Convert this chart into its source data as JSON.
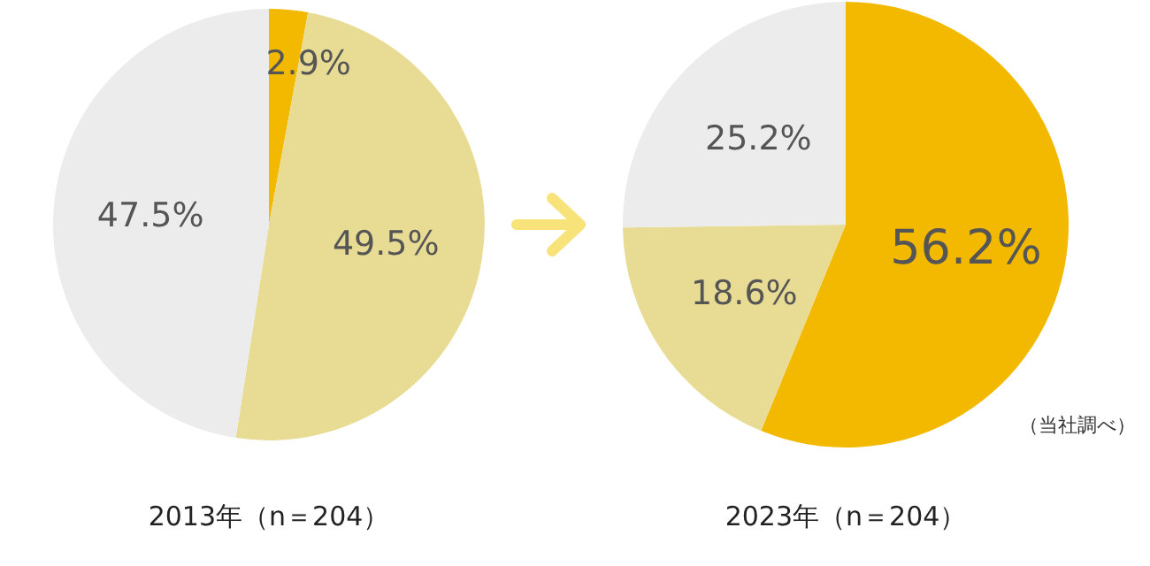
{
  "chart_data": [
    {
      "type": "pie",
      "title": "2013年（n＝204）",
      "categories": [
        null,
        null,
        null
      ],
      "values": [
        2.9,
        49.5,
        47.5
      ],
      "colors": [
        "#f2b900",
        "#e8dc94",
        "#ececec"
      ],
      "value_labels": [
        "2.9%",
        "49.5%",
        "47.5%"
      ]
    },
    {
      "type": "pie",
      "title": "2023年（n＝204）",
      "categories": [
        null,
        null,
        null
      ],
      "values": [
        56.2,
        18.6,
        25.2
      ],
      "colors": [
        "#f2b900",
        "#e8dc94",
        "#ececec"
      ],
      "value_labels": [
        "56.2%",
        "18.6%",
        "25.2%"
      ],
      "annotations": [
        "（当社調べ）"
      ]
    }
  ]
}
